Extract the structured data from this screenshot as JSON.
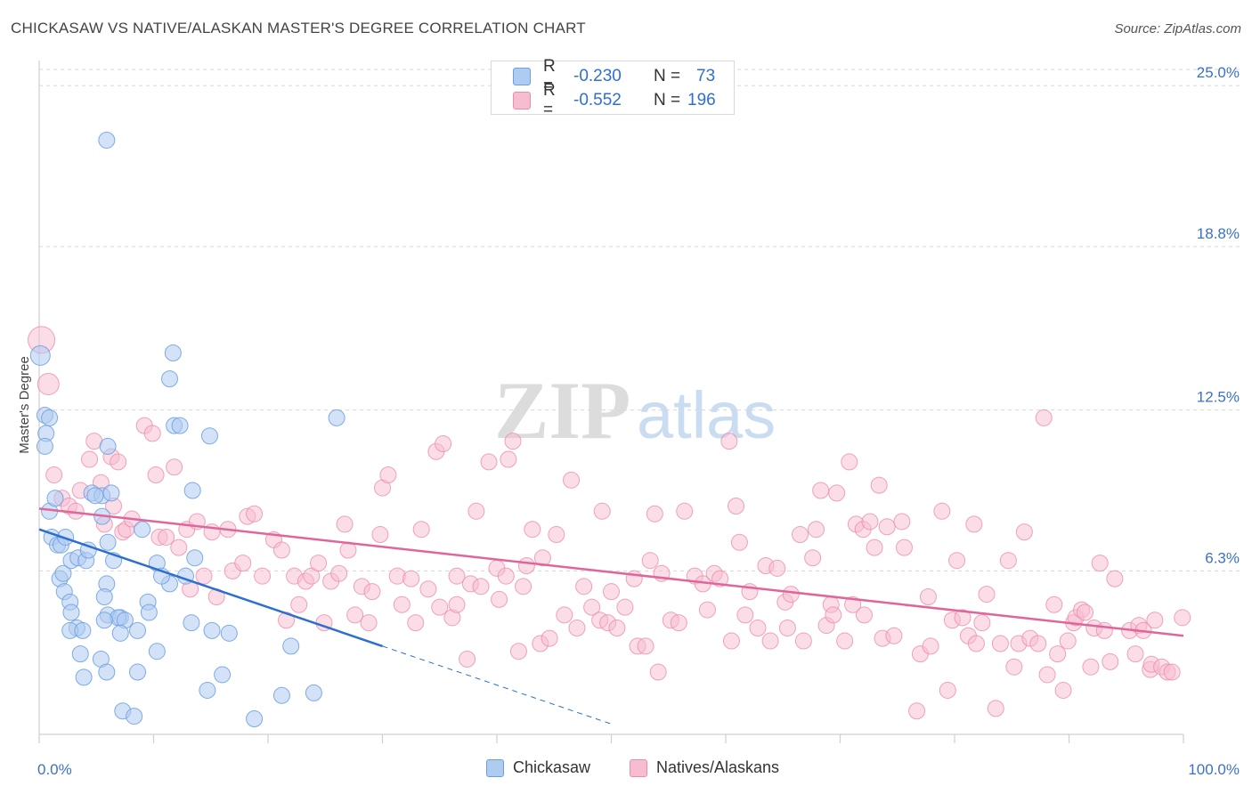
{
  "header": {
    "title": "CHICKASAW VS NATIVE/ALASKAN MASTER'S DEGREE CORRELATION CHART",
    "source": "Source: ZipAtlas.com"
  },
  "legend": {
    "rows": [
      {
        "r_label": "R =",
        "r_value": "-0.230",
        "n_label": "N =",
        "n_value": "73"
      },
      {
        "r_label": "R =",
        "r_value": "-0.552",
        "n_label": "N =",
        "n_value": "196"
      }
    ],
    "bottom": [
      "Chickasaw",
      "Natives/Alaskans"
    ]
  },
  "colors": {
    "chickasaw_fill": "#aecbf0",
    "chickasaw_stroke": "#6a9fe0",
    "chickasaw_line": "#2b6fd1",
    "natives_fill": "#f7bcd0",
    "natives_stroke": "#ec8cab",
    "natives_line": "#e0659a",
    "tick_color": "#3b72c4",
    "grid": "#d8d8d8"
  },
  "chart_data": {
    "type": "scatter",
    "title": "CHICKASAW VS NATIVE/ALASKAN MASTER'S DEGREE CORRELATION CHART",
    "xlabel": "",
    "ylabel": "Master's Degree",
    "xlim": [
      0,
      100
    ],
    "ylim": [
      0,
      25.9
    ],
    "x_ticks": [
      "0.0%",
      "100.0%"
    ],
    "y_ticks": [
      {
        "value": 6.3,
        "label": "6.3%"
      },
      {
        "value": 12.5,
        "label": "12.5%"
      },
      {
        "value": 18.8,
        "label": "18.8%"
      },
      {
        "value": 25.0,
        "label": "25.0%"
      }
    ],
    "grid": "horizontal dashed",
    "legend_position": "top-center",
    "watermark": {
      "zip": "ZIP",
      "atlas": "atlas"
    },
    "series": [
      {
        "name": "Chickasaw",
        "trend": {
          "x": [
            0,
            30
          ],
          "y": [
            7.9,
            3.4
          ],
          "dashed_extension_to_x": 50
        },
        "points": [
          [
            0.1,
            14.6
          ],
          [
            0.5,
            12.3
          ],
          [
            0.9,
            12.2
          ],
          [
            0.6,
            11.6
          ],
          [
            0.5,
            11.1
          ],
          [
            0.9,
            8.6
          ],
          [
            1.4,
            9.1
          ],
          [
            1.1,
            7.6
          ],
          [
            1.6,
            7.3
          ],
          [
            1.9,
            7.3
          ],
          [
            2.3,
            7.6
          ],
          [
            1.8,
            6.0
          ],
          [
            2.2,
            5.5
          ],
          [
            2.1,
            6.2
          ],
          [
            2.7,
            5.1
          ],
          [
            2.8,
            6.7
          ],
          [
            3.4,
            6.8
          ],
          [
            4.1,
            6.7
          ],
          [
            4.3,
            7.1
          ],
          [
            3.3,
            4.1
          ],
          [
            2.7,
            4.0
          ],
          [
            2.8,
            4.7
          ],
          [
            3.8,
            4.0
          ],
          [
            3.6,
            3.1
          ],
          [
            3.9,
            2.2
          ],
          [
            4.6,
            9.3
          ],
          [
            5.5,
            9.2
          ],
          [
            6.0,
            11.1
          ],
          [
            5.5,
            8.4
          ],
          [
            4.9,
            9.2
          ],
          [
            6.3,
            9.3
          ],
          [
            6.0,
            7.4
          ],
          [
            5.9,
            5.8
          ],
          [
            6.5,
            6.7
          ],
          [
            5.7,
            5.3
          ],
          [
            6.0,
            4.6
          ],
          [
            7.1,
            4.5
          ],
          [
            6.9,
            4.5
          ],
          [
            7.5,
            4.4
          ],
          [
            5.7,
            4.4
          ],
          [
            5.4,
            2.9
          ],
          [
            5.9,
            2.4
          ],
          [
            7.1,
            3.9
          ],
          [
            7.3,
            0.9
          ],
          [
            8.3,
            0.7
          ],
          [
            8.6,
            2.4
          ],
          [
            9.0,
            7.9
          ],
          [
            9.5,
            5.1
          ],
          [
            8.6,
            4.0
          ],
          [
            10.3,
            6.6
          ],
          [
            11.4,
            5.8
          ],
          [
            10.7,
            6.1
          ],
          [
            10.3,
            3.2
          ],
          [
            9.6,
            4.7
          ],
          [
            11.7,
            14.7
          ],
          [
            11.4,
            13.7
          ],
          [
            11.8,
            11.9
          ],
          [
            12.3,
            11.9
          ],
          [
            12.8,
            6.1
          ],
          [
            13.4,
            9.4
          ],
          [
            13.6,
            6.8
          ],
          [
            13.3,
            4.3
          ],
          [
            14.9,
            11.5
          ],
          [
            15.1,
            4.0
          ],
          [
            14.7,
            1.7
          ],
          [
            16.0,
            2.3
          ],
          [
            16.6,
            3.9
          ],
          [
            18.8,
            0.6
          ],
          [
            21.2,
            1.5
          ],
          [
            22.0,
            3.4
          ],
          [
            24.0,
            1.6
          ],
          [
            26.0,
            12.2
          ],
          [
            5.9,
            22.9
          ]
        ]
      },
      {
        "name": "Natives/Alaskans",
        "trend": {
          "x": [
            0,
            100
          ],
          "y": [
            8.7,
            3.8
          ]
        },
        "points": [
          [
            0.2,
            15.2
          ],
          [
            0.8,
            13.5
          ],
          [
            1.3,
            10.0
          ],
          [
            2.0,
            9.1
          ],
          [
            2.6,
            8.8
          ],
          [
            3.2,
            8.6
          ],
          [
            3.6,
            9.4
          ],
          [
            4.4,
            10.6
          ],
          [
            4.8,
            11.3
          ],
          [
            5.4,
            9.7
          ],
          [
            5.7,
            8.1
          ],
          [
            6.3,
            10.7
          ],
          [
            6.9,
            10.5
          ],
          [
            6.5,
            8.8
          ],
          [
            7.3,
            7.8
          ],
          [
            7.6,
            7.9
          ],
          [
            8.1,
            8.3
          ],
          [
            9.2,
            11.9
          ],
          [
            9.9,
            11.6
          ],
          [
            10.2,
            10.0
          ],
          [
            10.5,
            7.6
          ],
          [
            11.1,
            7.6
          ],
          [
            11.8,
            10.3
          ],
          [
            12.2,
            7.2
          ],
          [
            12.9,
            7.9
          ],
          [
            13.8,
            8.2
          ],
          [
            14.4,
            6.1
          ],
          [
            15.1,
            7.8
          ],
          [
            13.2,
            5.6
          ],
          [
            15.5,
            5.3
          ],
          [
            16.5,
            7.9
          ],
          [
            16.9,
            6.3
          ],
          [
            17.8,
            6.6
          ],
          [
            18.2,
            8.4
          ],
          [
            18.8,
            8.5
          ],
          [
            19.5,
            6.1
          ],
          [
            20.5,
            7.5
          ],
          [
            21.2,
            7.1
          ],
          [
            21.6,
            4.4
          ],
          [
            22.3,
            6.1
          ],
          [
            22.7,
            5.0
          ],
          [
            23.3,
            5.9
          ],
          [
            23.8,
            6.1
          ],
          [
            24.4,
            6.6
          ],
          [
            24.9,
            4.3
          ],
          [
            25.5,
            5.9
          ],
          [
            26.2,
            6.2
          ],
          [
            26.7,
            8.1
          ],
          [
            27.0,
            7.1
          ],
          [
            27.6,
            4.6
          ],
          [
            28.2,
            5.7
          ],
          [
            28.8,
            4.3
          ],
          [
            29.1,
            5.5
          ],
          [
            29.8,
            7.7
          ],
          [
            30.0,
            9.5
          ],
          [
            30.5,
            10.0
          ],
          [
            31.3,
            6.1
          ],
          [
            31.7,
            5.0
          ],
          [
            32.5,
            6.0
          ],
          [
            32.9,
            4.3
          ],
          [
            33.4,
            7.9
          ],
          [
            34.0,
            5.6
          ],
          [
            34.7,
            10.9
          ],
          [
            35.0,
            4.9
          ],
          [
            35.3,
            11.2
          ],
          [
            36.1,
            4.5
          ],
          [
            36.5,
            6.1
          ],
          [
            36.5,
            5.0
          ],
          [
            37.4,
            2.9
          ],
          [
            37.7,
            5.8
          ],
          [
            38.2,
            8.6
          ],
          [
            38.6,
            5.7
          ],
          [
            39.3,
            10.5
          ],
          [
            40.0,
            6.4
          ],
          [
            40.2,
            5.2
          ],
          [
            40.8,
            6.1
          ],
          [
            41.0,
            10.6
          ],
          [
            41.4,
            11.3
          ],
          [
            41.9,
            3.2
          ],
          [
            42.3,
            5.7
          ],
          [
            42.6,
            6.5
          ],
          [
            43.1,
            7.9
          ],
          [
            43.8,
            3.5
          ],
          [
            44.0,
            6.8
          ],
          [
            44.6,
            3.7
          ],
          [
            45.2,
            7.7
          ],
          [
            45.9,
            4.6
          ],
          [
            46.5,
            9.8
          ],
          [
            47.0,
            4.1
          ],
          [
            47.6,
            5.7
          ],
          [
            48.3,
            4.9
          ],
          [
            49.0,
            4.4
          ],
          [
            49.2,
            8.6
          ],
          [
            49.7,
            4.3
          ],
          [
            50.0,
            5.5
          ],
          [
            50.5,
            4.1
          ],
          [
            51.2,
            4.9
          ],
          [
            52.0,
            6.0
          ],
          [
            52.3,
            3.4
          ],
          [
            53.0,
            3.4
          ],
          [
            53.4,
            6.7
          ],
          [
            53.8,
            8.5
          ],
          [
            54.1,
            2.4
          ],
          [
            54.4,
            6.2
          ],
          [
            55.2,
            4.4
          ],
          [
            55.9,
            4.3
          ],
          [
            56.4,
            8.6
          ],
          [
            57.3,
            6.1
          ],
          [
            58.0,
            5.8
          ],
          [
            58.4,
            4.8
          ],
          [
            59.0,
            6.2
          ],
          [
            59.5,
            6.0
          ],
          [
            60.3,
            11.3
          ],
          [
            60.5,
            3.6
          ],
          [
            60.9,
            8.8
          ],
          [
            61.2,
            7.4
          ],
          [
            61.7,
            4.6
          ],
          [
            62.1,
            5.5
          ],
          [
            62.8,
            4.1
          ],
          [
            63.5,
            6.5
          ],
          [
            63.9,
            3.6
          ],
          [
            64.5,
            6.4
          ],
          [
            65.2,
            5.1
          ],
          [
            65.4,
            4.1
          ],
          [
            65.7,
            5.4
          ],
          [
            66.5,
            7.7
          ],
          [
            66.8,
            3.6
          ],
          [
            67.6,
            6.8
          ],
          [
            67.9,
            7.9
          ],
          [
            68.3,
            9.4
          ],
          [
            68.8,
            4.2
          ],
          [
            69.2,
            5.0
          ],
          [
            69.4,
            4.6
          ],
          [
            69.7,
            9.3
          ],
          [
            70.4,
            3.6
          ],
          [
            70.8,
            10.5
          ],
          [
            71.1,
            5.0
          ],
          [
            71.4,
            8.1
          ],
          [
            72.0,
            7.9
          ],
          [
            72.6,
            8.2
          ],
          [
            72.1,
            4.6
          ],
          [
            73.0,
            7.2
          ],
          [
            73.4,
            9.6
          ],
          [
            73.7,
            3.7
          ],
          [
            74.1,
            8.0
          ],
          [
            74.7,
            3.8
          ],
          [
            75.4,
            8.2
          ],
          [
            75.6,
            7.2
          ],
          [
            76.7,
            0.9
          ],
          [
            77.0,
            3.1
          ],
          [
            77.7,
            5.3
          ],
          [
            77.9,
            3.4
          ],
          [
            78.9,
            8.6
          ],
          [
            79.4,
            1.7
          ],
          [
            79.8,
            4.4
          ],
          [
            80.2,
            6.7
          ],
          [
            80.7,
            4.5
          ],
          [
            81.2,
            3.8
          ],
          [
            81.7,
            8.1
          ],
          [
            81.9,
            3.5
          ],
          [
            82.4,
            4.3
          ],
          [
            82.8,
            5.4
          ],
          [
            83.6,
            1.0
          ],
          [
            84.0,
            3.5
          ],
          [
            84.7,
            6.7
          ],
          [
            85.2,
            2.6
          ],
          [
            85.6,
            3.5
          ],
          [
            86.1,
            7.8
          ],
          [
            86.6,
            3.7
          ],
          [
            87.3,
            3.5
          ],
          [
            87.8,
            12.2
          ],
          [
            88.1,
            2.3
          ],
          [
            88.7,
            5.0
          ],
          [
            89.0,
            3.1
          ],
          [
            89.5,
            1.7
          ],
          [
            89.9,
            3.6
          ],
          [
            90.4,
            4.3
          ],
          [
            90.6,
            4.5
          ],
          [
            91.1,
            4.8
          ],
          [
            91.4,
            4.7
          ],
          [
            91.9,
            2.6
          ],
          [
            92.2,
            4.1
          ],
          [
            92.7,
            6.6
          ],
          [
            93.1,
            4.0
          ],
          [
            93.6,
            2.8
          ],
          [
            94.0,
            6.0
          ],
          [
            95.3,
            4.0
          ],
          [
            95.8,
            3.1
          ],
          [
            96.1,
            4.2
          ],
          [
            96.5,
            4.0
          ],
          [
            97.1,
            2.5
          ],
          [
            97.5,
            4.4
          ],
          [
            97.2,
            2.7
          ],
          [
            98.1,
            2.6
          ],
          [
            98.6,
            2.4
          ],
          [
            99.0,
            2.4
          ],
          [
            99.9,
            4.5
          ]
        ]
      }
    ]
  }
}
